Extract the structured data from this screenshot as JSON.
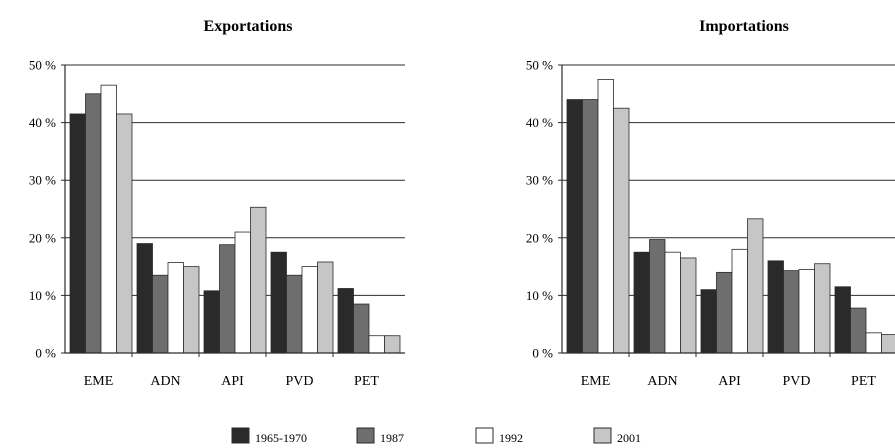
{
  "chart_data": [
    {
      "type": "bar",
      "title": "Exportations",
      "categories": [
        "EME",
        "ADN",
        "API",
        "PVD",
        "PET"
      ],
      "yticks": [
        "0 %",
        "10 %",
        "20 %",
        "30 %",
        "40 %",
        "50 %"
      ],
      "ylim": [
        0,
        50
      ],
      "grid": true,
      "series": [
        {
          "name": "1965-1970",
          "values": [
            41.5,
            19,
            10.8,
            17.5,
            11.2
          ]
        },
        {
          "name": "1987",
          "values": [
            45,
            13.5,
            18.8,
            13.5,
            8.5
          ]
        },
        {
          "name": "1992",
          "values": [
            46.5,
            15.7,
            21,
            15,
            3
          ]
        },
        {
          "name": "2001",
          "values": [
            41.5,
            15,
            25.3,
            15.8,
            3
          ]
        }
      ]
    },
    {
      "type": "bar",
      "title": "Importations",
      "categories": [
        "EME",
        "ADN",
        "API",
        "PVD",
        "PET"
      ],
      "yticks": [
        "0 %",
        "10 %",
        "20 %",
        "30 %",
        "40 %",
        "50 %"
      ],
      "ylim": [
        0,
        50
      ],
      "grid": true,
      "series": [
        {
          "name": "1965-1970",
          "values": [
            44,
            17.5,
            11,
            16,
            11.5
          ]
        },
        {
          "name": "1987",
          "values": [
            44,
            19.7,
            14,
            14.3,
            7.8
          ]
        },
        {
          "name": "1992",
          "values": [
            47.5,
            17.5,
            18,
            14.5,
            3.5
          ]
        },
        {
          "name": "2001",
          "values": [
            42.5,
            16.5,
            23.3,
            15.5,
            3.2
          ]
        }
      ]
    }
  ],
  "legend": {
    "placement": "bottom",
    "items": [
      "1965-1970",
      "1987",
      "1992",
      "2001"
    ]
  },
  "colors": {
    "1965-1970": "#2a2a2a",
    "1987": "#6e6e6e",
    "1992": "#ffffff",
    "2001": "#c6c6c6"
  }
}
